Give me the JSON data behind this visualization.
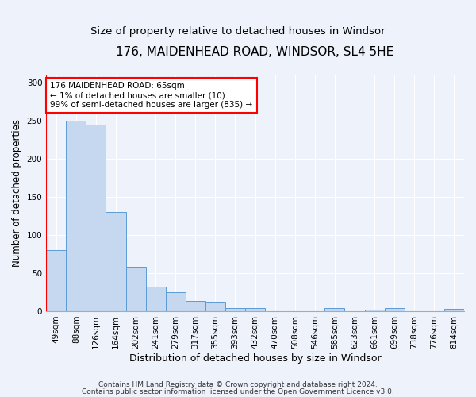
{
  "title1": "176, MAIDENHEAD ROAD, WINDSOR, SL4 5HE",
  "title2": "Size of property relative to detached houses in Windsor",
  "xlabel": "Distribution of detached houses by size in Windsor",
  "ylabel": "Number of detached properties",
  "footer1": "Contains HM Land Registry data © Crown copyright and database right 2024.",
  "footer2": "Contains public sector information licensed under the Open Government Licence v3.0.",
  "categories": [
    "49sqm",
    "88sqm",
    "126sqm",
    "164sqm",
    "202sqm",
    "241sqm",
    "279sqm",
    "317sqm",
    "355sqm",
    "393sqm",
    "432sqm",
    "470sqm",
    "508sqm",
    "546sqm",
    "585sqm",
    "623sqm",
    "661sqm",
    "699sqm",
    "738sqm",
    "776sqm",
    "814sqm"
  ],
  "values": [
    80,
    250,
    245,
    130,
    58,
    32,
    25,
    13,
    12,
    4,
    4,
    0,
    0,
    0,
    4,
    0,
    2,
    4,
    0,
    0,
    3
  ],
  "bar_color": "#c5d8f0",
  "bar_edge_color": "#5b9bd5",
  "annotation_text_line1": "176 MAIDENHEAD ROAD: 65sqm",
  "annotation_text_line2": "← 1% of detached houses are smaller (10)",
  "annotation_text_line3": "99% of semi-detached houses are larger (835) →",
  "annotation_box_color": "white",
  "annotation_box_edge_color": "red",
  "vline_color": "red",
  "ylim": [
    0,
    310
  ],
  "yticks": [
    0,
    50,
    100,
    150,
    200,
    250,
    300
  ],
  "bg_color": "#eef2fb",
  "grid_color": "#ffffff",
  "title_fontsize": 11,
  "subtitle_fontsize": 9.5,
  "tick_fontsize": 7.5,
  "ylabel_fontsize": 8.5,
  "xlabel_fontsize": 9,
  "footer_fontsize": 6.5,
  "annotation_fontsize": 7.5
}
